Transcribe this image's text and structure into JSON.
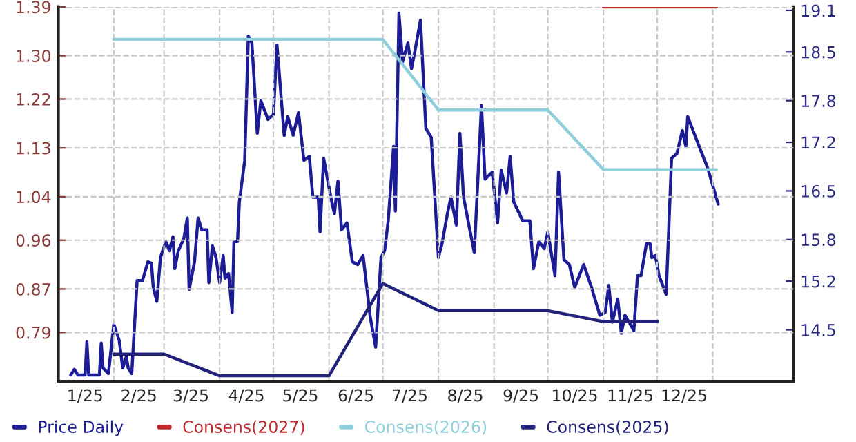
{
  "chart_data": {
    "type": "line",
    "x": [
      "2025-01-08",
      "2025-01-10",
      "2025-01-12",
      "2025-01-16",
      "2025-01-17",
      "2025-01-18",
      "2025-01-24",
      "2025-01-25",
      "2025-01-26",
      "2025-01-29",
      "2025-02-01",
      "2025-02-04",
      "2025-02-06",
      "2025-02-08",
      "2025-02-09",
      "2025-02-11",
      "2025-02-14",
      "2025-02-17",
      "2025-02-20",
      "2025-02-22",
      "2025-02-23",
      "2025-02-25",
      "2025-02-27",
      "2025-03-02",
      "2025-03-04",
      "2025-03-06",
      "2025-03-07",
      "2025-03-09",
      "2025-03-12",
      "2025-03-14",
      "2025-03-15",
      "2025-03-18",
      "2025-03-20",
      "2025-03-22",
      "2025-03-25",
      "2025-03-26",
      "2025-03-28",
      "2025-03-30",
      "2025-04-01",
      "2025-04-03",
      "2025-04-04",
      "2025-04-06",
      "2025-04-08",
      "2025-04-09",
      "2025-04-11",
      "2025-04-12",
      "2025-04-15",
      "2025-04-17",
      "2025-04-19",
      "2025-04-22",
      "2025-04-24",
      "2025-04-28",
      "2025-05-01",
      "2025-05-03",
      "2025-05-07",
      "2025-05-09",
      "2025-05-12",
      "2025-05-15",
      "2025-05-18",
      "2025-05-21",
      "2025-05-23",
      "2025-05-26",
      "2025-05-27",
      "2025-05-29",
      "2025-06-02",
      "2025-06-04",
      "2025-06-06",
      "2025-06-08",
      "2025-06-11",
      "2025-06-14",
      "2025-06-17",
      "2025-06-20",
      "2025-06-24",
      "2025-06-27",
      "2025-06-30",
      "2025-07-02",
      "2025-07-04",
      "2025-07-07",
      "2025-07-08",
      "2025-07-10",
      "2025-07-12",
      "2025-07-15",
      "2025-07-17",
      "2025-07-19",
      "2025-07-22",
      "2025-07-25",
      "2025-07-28",
      "2025-08-01",
      "2025-08-03",
      "2025-08-06",
      "2025-08-08",
      "2025-08-11",
      "2025-08-13",
      "2025-08-15",
      "2025-08-21",
      "2025-08-25",
      "2025-08-27",
      "2025-08-31",
      "2025-09-03",
      "2025-09-05",
      "2025-09-08",
      "2025-09-10",
      "2025-09-12",
      "2025-09-17",
      "2025-09-21",
      "2025-09-23",
      "2025-09-26",
      "2025-09-29",
      "2025-10-01",
      "2025-10-05",
      "2025-10-07",
      "2025-10-10",
      "2025-10-13",
      "2025-10-16",
      "2025-10-21",
      "2025-10-25",
      "2025-10-30",
      "2025-11-02",
      "2025-11-04",
      "2025-11-06",
      "2025-11-09",
      "2025-11-11",
      "2025-11-13",
      "2025-11-18",
      "2025-11-20",
      "2025-11-22",
      "2025-11-25",
      "2025-11-27",
      "2025-11-28",
      "2025-11-30",
      "2025-12-02",
      "2025-12-06",
      "2025-12-09",
      "2025-12-12",
      "2025-12-15",
      "2025-12-17",
      "2025-12-18",
      "2025-12-21",
      "2025-12-25",
      "2025-12-29",
      "2026-01-04"
    ],
    "series": [
      {
        "name": "Price Daily",
        "color": "#1c1c96",
        "axis": "y2",
        "values": [
          13.85,
          13.93,
          13.85,
          13.85,
          14.33,
          13.85,
          13.85,
          14.31,
          13.95,
          13.87,
          14.58,
          14.35,
          13.95,
          14.12,
          13.95,
          13.87,
          15.21,
          15.21,
          15.48,
          15.46,
          15.11,
          14.91,
          15.54,
          15.77,
          15.64,
          15.84,
          15.38,
          15.64,
          15.81,
          16.11,
          15.08,
          15.48,
          16.11,
          15.94,
          15.94,
          15.18,
          15.71,
          15.54,
          15.18,
          15.57,
          15.24,
          15.31,
          14.75,
          15.77,
          15.77,
          16.34,
          16.94,
          18.73,
          18.63,
          17.33,
          17.8,
          17.53,
          17.6,
          18.6,
          17.3,
          17.57,
          17.3,
          17.63,
          16.94,
          17.0,
          16.41,
          16.41,
          15.91,
          16.97,
          16.41,
          16.17,
          16.64,
          15.94,
          16.04,
          15.48,
          15.44,
          15.57,
          14.68,
          14.25,
          15.54,
          15.64,
          16.07,
          17.14,
          16.21,
          19.06,
          18.36,
          18.63,
          18.26,
          18.53,
          18.96,
          17.4,
          17.27,
          15.54,
          15.74,
          16.17,
          16.41,
          16.01,
          17.33,
          16.41,
          15.61,
          17.73,
          16.67,
          16.77,
          16.04,
          16.8,
          16.47,
          17.0,
          16.34,
          16.07,
          16.07,
          15.38,
          15.77,
          15.67,
          15.91,
          15.28,
          16.77,
          15.51,
          15.44,
          15.11,
          15.44,
          15.14,
          14.71,
          14.75,
          15.14,
          14.61,
          14.94,
          14.45,
          14.71,
          14.49,
          15.28,
          15.28,
          15.74,
          15.74,
          15.54,
          15.57,
          15.28,
          15.01,
          16.97,
          17.04,
          17.37,
          17.14,
          17.57,
          17.37,
          17.1,
          16.84,
          16.31
        ]
      },
      {
        "name": "Consens(2027)",
        "color": "#c0282d",
        "x": [
          "2025-11-01",
          "2026-01-03"
        ],
        "values": [
          1.39,
          1.39
        ]
      },
      {
        "name": "Consens(2026)",
        "color": "#8fcfdc",
        "x": [
          "2025-02-01",
          "2025-07-01",
          "2025-08-01",
          "2025-10-01",
          "2025-11-01",
          "2026-01-03"
        ],
        "values": [
          1.33,
          1.33,
          1.2,
          1.2,
          1.09,
          1.09
        ]
      },
      {
        "name": "Consens(2025)",
        "color": "#22227a",
        "x": [
          "2025-02-01",
          "2025-03-01",
          "2025-04-01",
          "2025-06-01",
          "2025-07-01",
          "2025-08-01",
          "2025-10-01",
          "2025-11-01",
          "2025-12-01"
        ],
        "values": [
          0.75,
          0.75,
          0.71,
          0.71,
          0.88,
          0.83,
          0.83,
          0.81,
          0.81
        ]
      }
    ],
    "xlim": [
      "2025-01-01",
      "2026-02-15"
    ],
    "xticks": [
      {
        "value": "2025-01-16",
        "label": "1/25"
      },
      {
        "value": "2025-02-01",
        "label": null
      },
      {
        "value": "2025-02-15",
        "label": "2/25"
      },
      {
        "value": "2025-03-01",
        "label": null
      },
      {
        "value": "2025-03-16",
        "label": "3/25"
      },
      {
        "value": "2025-04-01",
        "label": null
      },
      {
        "value": "2025-04-16",
        "label": "4/25"
      },
      {
        "value": "2025-05-01",
        "label": null
      },
      {
        "value": "2025-05-16",
        "label": "5/25"
      },
      {
        "value": "2025-06-01",
        "label": null
      },
      {
        "value": "2025-06-16",
        "label": "6/25"
      },
      {
        "value": "2025-07-01",
        "label": null
      },
      {
        "value": "2025-07-16",
        "label": "7/25"
      },
      {
        "value": "2025-08-01",
        "label": null
      },
      {
        "value": "2025-08-16",
        "label": "8/25"
      },
      {
        "value": "2025-09-01",
        "label": null
      },
      {
        "value": "2025-09-16",
        "label": "9/25"
      },
      {
        "value": "2025-10-01",
        "label": null
      },
      {
        "value": "2025-10-16",
        "label": "10/25"
      },
      {
        "value": "2025-11-01",
        "label": null
      },
      {
        "value": "2025-11-16",
        "label": "11/25"
      },
      {
        "value": "2025-12-01",
        "label": null
      },
      {
        "value": "2025-12-16",
        "label": "12/25"
      },
      {
        "value": "2026-01-01",
        "label": null
      }
    ],
    "ylim": [
      0.7,
      1.39
    ],
    "yticks": [
      0.79,
      0.87,
      0.96,
      1.04,
      1.13,
      1.22,
      {
        "value": 1.3,
        "label": "1.30"
      },
      1.39
    ],
    "y2lim": [
      13.76,
      19.15
    ],
    "y2ticks": [
      14.5,
      15.2,
      15.8,
      16.5,
      17.2,
      17.8,
      18.5,
      19.1
    ],
    "grid": true,
    "legend": "bottom",
    "line_style": "solid",
    "marker": "none"
  }
}
